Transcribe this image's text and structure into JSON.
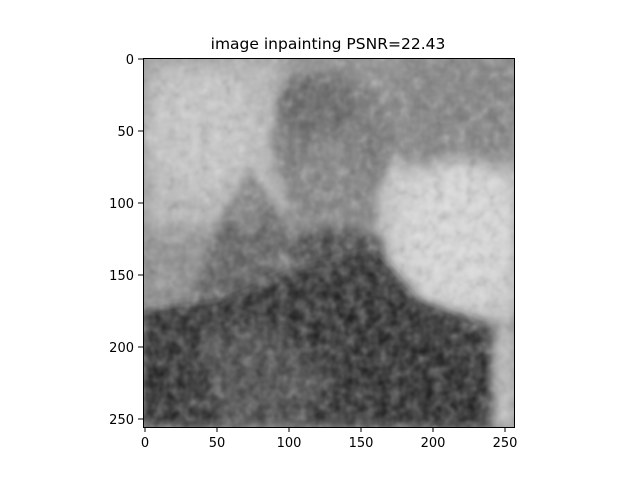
{
  "figure": {
    "title": "image inpainting PSNR=22.43",
    "image_description_icon": "grayscale-portrait-image"
  },
  "axes": {
    "x_ticks": [
      "0",
      "50",
      "100",
      "150",
      "200",
      "250"
    ],
    "y_ticks": [
      "0",
      "50",
      "100",
      "150",
      "200",
      "250"
    ]
  }
}
